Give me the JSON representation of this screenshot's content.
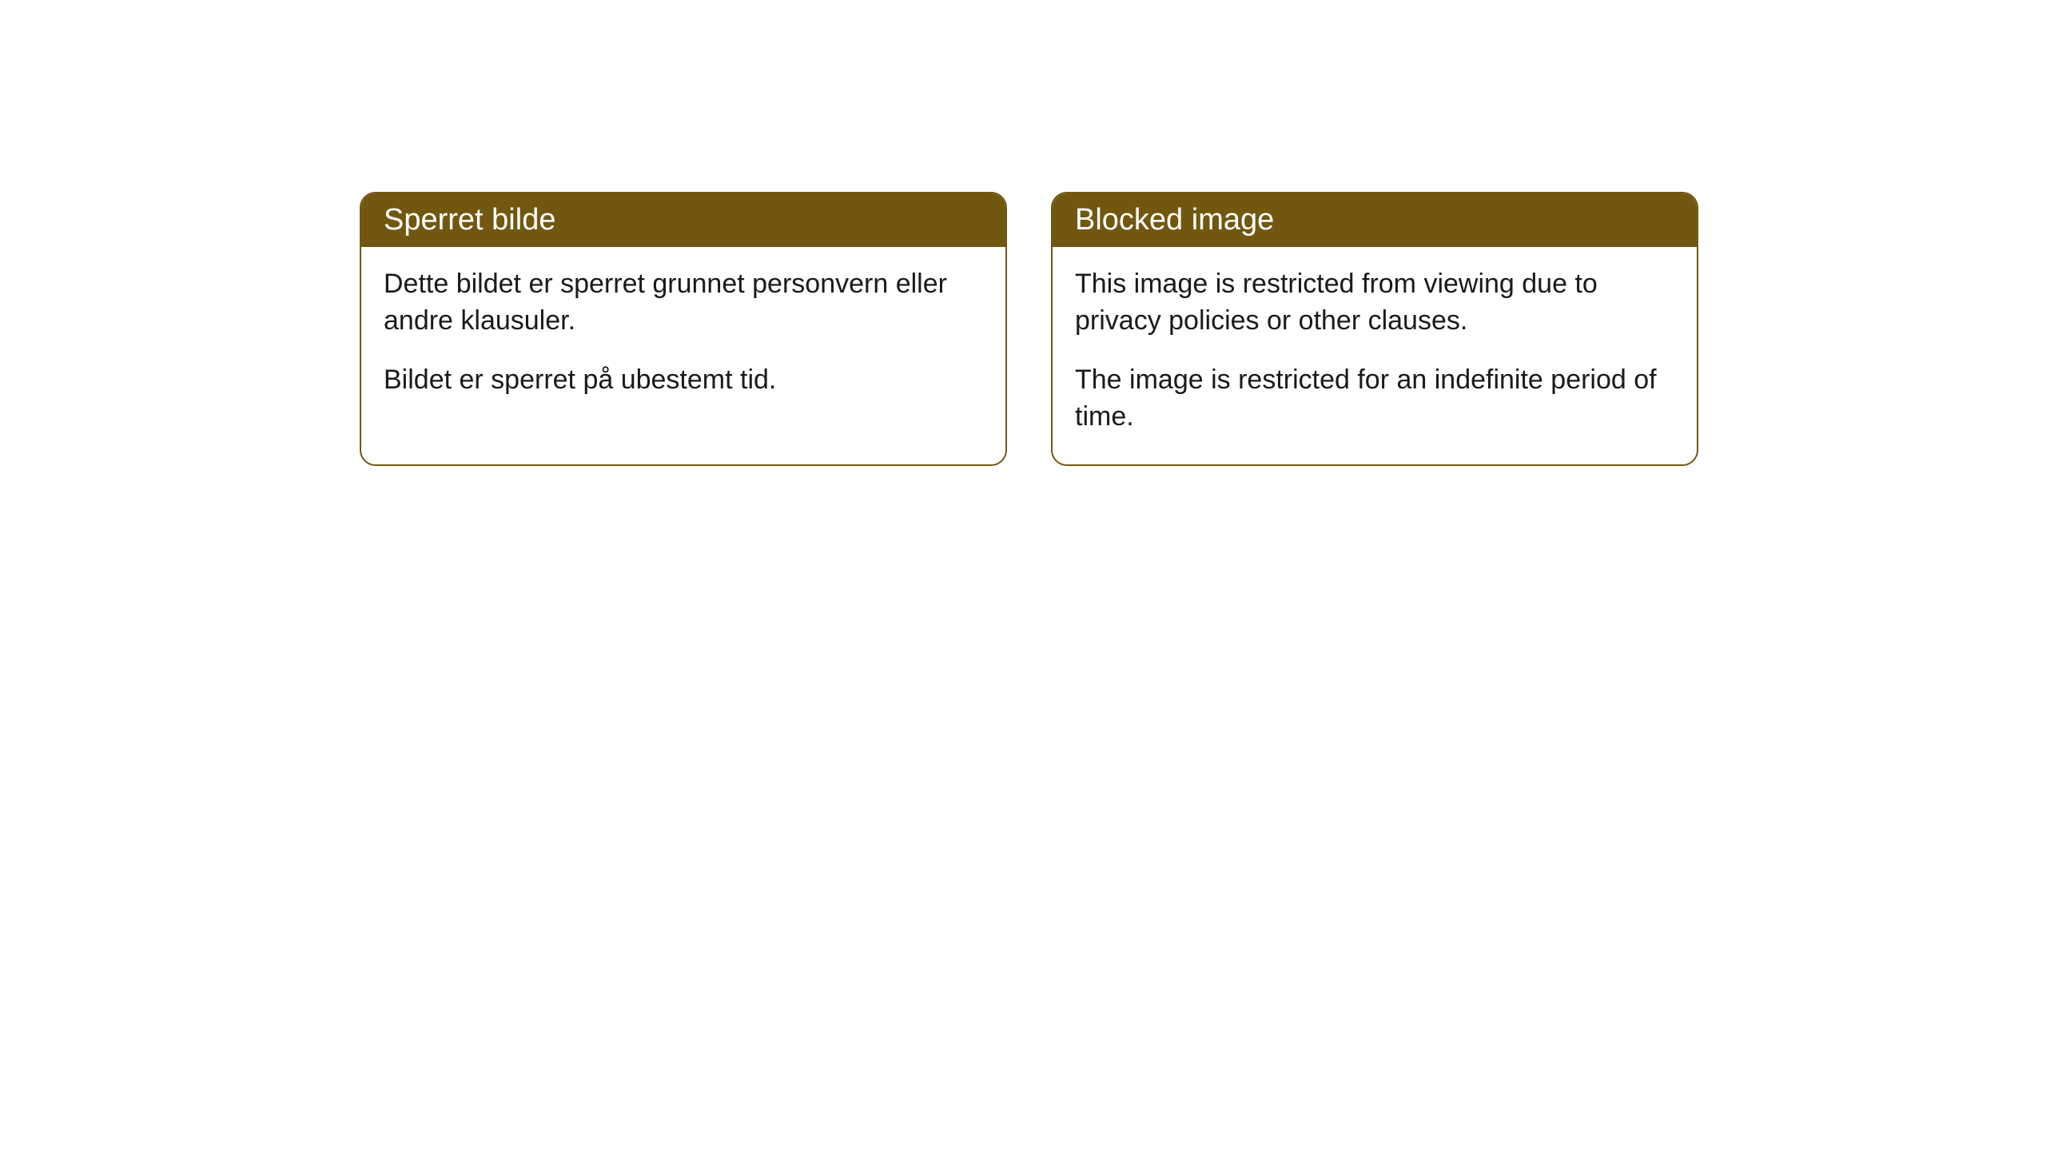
{
  "cards": [
    {
      "title": "Sperret bilde",
      "paragraph1": "Dette bildet er sperret grunnet personvern eller andre klausuler.",
      "paragraph2": "Bildet er sperret på ubestemt tid."
    },
    {
      "title": "Blocked image",
      "paragraph1": "This image is restricted from viewing due to privacy policies or other clauses.",
      "paragraph2": "The image is restricted for an indefinite period of time."
    }
  ],
  "styling": {
    "header_bg_color": "#725710",
    "header_text_color": "#ffffff",
    "border_color": "#725710",
    "body_bg_color": "#ffffff",
    "body_text_color": "#1a1a1a",
    "border_radius": 20,
    "header_fontsize": 38,
    "body_fontsize": 34
  }
}
